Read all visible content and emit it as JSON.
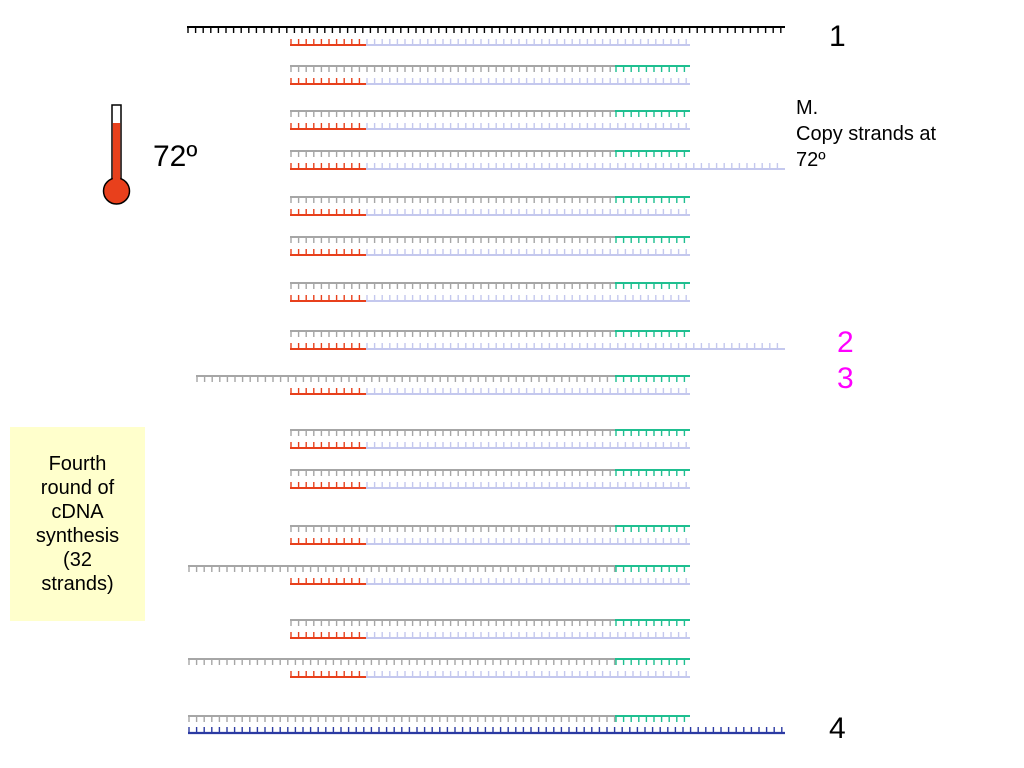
{
  "labels": {
    "n1": "1",
    "n2": "2",
    "n3": "3",
    "n4": "4",
    "step_note": "M.\nCopy strands at\n72º",
    "temperature": "72º",
    "info_box": "Fourth\nround of\ncDNA\nsynthesis\n(32\nstrands)"
  },
  "colors": {
    "template_black": "#000000",
    "template_gray": "#a6a6a6",
    "primer_red": "#e8401c",
    "extension_lavender": "#c4c8ee",
    "primer_green": "#1fbf90",
    "strand_blue": "#2b3aa3",
    "label_magenta": "#ff00ff",
    "box_fill": "#ffffcc",
    "thermometer_red": "#e8401c"
  },
  "icons": {
    "thermometer": "thermometer-icon"
  }
}
